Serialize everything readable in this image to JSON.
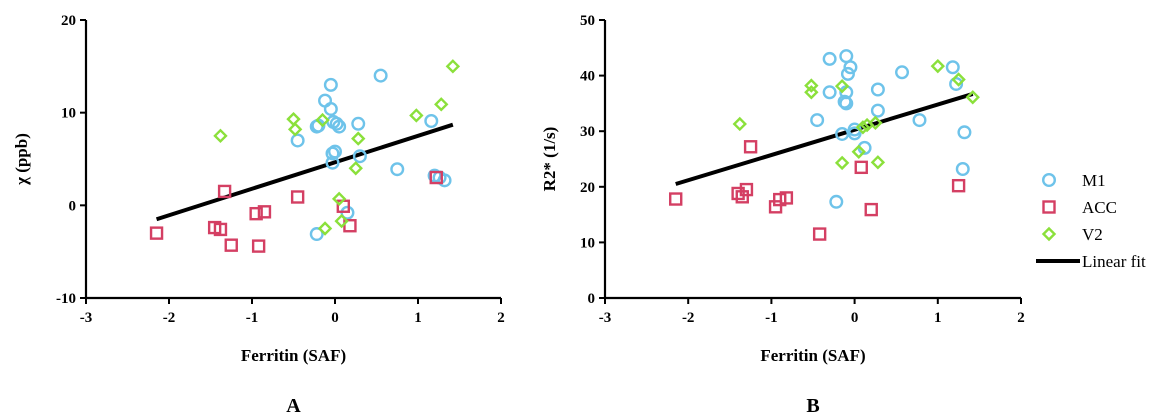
{
  "chart_data": [
    {
      "type": "scatter",
      "panel_label": "A",
      "xlabel": "Ferritin (SAF)",
      "ylabel": "χ (ppb)",
      "xlim": [
        -3,
        2
      ],
      "ylim": [
        -10,
        20
      ],
      "xticks": [
        -3,
        -2,
        -1,
        0,
        1,
        2
      ],
      "yticks": [
        -10,
        0,
        10,
        20
      ],
      "grid": false,
      "series": [
        {
          "name": "M1",
          "marker": "circle",
          "color": "#6ec3ea",
          "points": [
            [
              -0.45,
              7.0
            ],
            [
              -0.22,
              8.5
            ],
            [
              -0.2,
              8.6
            ],
            [
              -0.12,
              11.3
            ],
            [
              -0.05,
              13.0
            ],
            [
              -0.05,
              10.4
            ],
            [
              -0.02,
              9.0
            ],
            [
              0.02,
              8.8
            ],
            [
              0.05,
              8.5
            ],
            [
              -0.03,
              5.6
            ],
            [
              0.0,
              5.8
            ],
            [
              -0.03,
              4.6
            ],
            [
              0.28,
              8.8
            ],
            [
              0.3,
              5.3
            ],
            [
              0.55,
              14.0
            ],
            [
              0.75,
              3.9
            ],
            [
              1.16,
              9.1
            ],
            [
              1.2,
              3.2
            ],
            [
              1.26,
              3.0
            ],
            [
              1.32,
              2.7
            ],
            [
              0.15,
              -0.8
            ],
            [
              -0.22,
              -3.1
            ]
          ]
        },
        {
          "name": "ACC",
          "marker": "square",
          "color": "#d43f63",
          "points": [
            [
              -2.15,
              -3.0
            ],
            [
              -1.45,
              -2.4
            ],
            [
              -1.38,
              -2.6
            ],
            [
              -1.33,
              1.5
            ],
            [
              -1.25,
              -4.3
            ],
            [
              -0.95,
              -0.9
            ],
            [
              -0.92,
              -4.4
            ],
            [
              -0.85,
              -0.7
            ],
            [
              -0.45,
              0.9
            ],
            [
              0.1,
              -0.1
            ],
            [
              0.18,
              -2.2
            ],
            [
              1.22,
              3.0
            ]
          ]
        },
        {
          "name": "V2",
          "marker": "diamond",
          "color": "#8be03b",
          "points": [
            [
              -1.38,
              7.5
            ],
            [
              -0.5,
              9.3
            ],
            [
              -0.48,
              8.2
            ],
            [
              -0.15,
              9.2
            ],
            [
              0.28,
              7.2
            ],
            [
              0.25,
              4.0
            ],
            [
              0.05,
              0.7
            ],
            [
              0.08,
              -1.7
            ],
            [
              -0.12,
              -2.5
            ],
            [
              0.98,
              9.7
            ],
            [
              1.28,
              10.9
            ],
            [
              1.42,
              15.0
            ]
          ]
        }
      ],
      "fit": {
        "name": "Linear fit",
        "x": [
          -2.15,
          1.42
        ],
        "y": [
          -1.5,
          8.7
        ],
        "color": "#000000"
      }
    },
    {
      "type": "scatter",
      "panel_label": "B",
      "xlabel": "Ferritin (SAF)",
      "ylabel": "R2* (1/s)",
      "xlim": [
        -3,
        2
      ],
      "ylim": [
        0,
        50
      ],
      "xticks": [
        -3,
        -2,
        -1,
        0,
        1,
        2
      ],
      "yticks": [
        0,
        10,
        20,
        30,
        40,
        50
      ],
      "grid": false,
      "series": [
        {
          "name": "M1",
          "marker": "circle",
          "color": "#6ec3ea",
          "points": [
            [
              -0.3,
              43.0
            ],
            [
              -0.1,
              43.5
            ],
            [
              -0.05,
              41.5
            ],
            [
              -0.08,
              40.3
            ],
            [
              -0.3,
              37.0
            ],
            [
              -0.1,
              37.0
            ],
            [
              -0.12,
              35.3
            ],
            [
              -0.1,
              35.0
            ],
            [
              -0.45,
              32.0
            ],
            [
              0.0,
              30.3
            ],
            [
              -0.15,
              29.5
            ],
            [
              0.0,
              29.6
            ],
            [
              0.12,
              27.0
            ],
            [
              -0.22,
              17.3
            ],
            [
              0.28,
              37.5
            ],
            [
              0.28,
              33.7
            ],
            [
              0.57,
              40.6
            ],
            [
              0.78,
              32.0
            ],
            [
              1.18,
              41.5
            ],
            [
              1.22,
              38.5
            ],
            [
              1.32,
              29.8
            ],
            [
              1.3,
              23.2
            ]
          ]
        },
        {
          "name": "ACC",
          "marker": "square",
          "color": "#d43f63",
          "points": [
            [
              -2.15,
              17.8
            ],
            [
              -1.4,
              18.8
            ],
            [
              -1.35,
              18.2
            ],
            [
              -1.3,
              19.5
            ],
            [
              -1.25,
              27.2
            ],
            [
              -0.95,
              16.4
            ],
            [
              -0.9,
              17.7
            ],
            [
              -0.82,
              18.0
            ],
            [
              -0.42,
              11.5
            ],
            [
              0.08,
              23.5
            ],
            [
              0.2,
              15.9
            ],
            [
              1.25,
              20.2
            ]
          ]
        },
        {
          "name": "V2",
          "marker": "diamond",
          "color": "#8be03b",
          "points": [
            [
              -1.38,
              31.3
            ],
            [
              -0.52,
              38.2
            ],
            [
              -0.52,
              37.0
            ],
            [
              -0.15,
              38.1
            ],
            [
              -0.15,
              24.3
            ],
            [
              0.05,
              26.3
            ],
            [
              0.1,
              30.7
            ],
            [
              0.15,
              31.1
            ],
            [
              0.25,
              31.5
            ],
            [
              0.28,
              24.4
            ],
            [
              1.0,
              41.7
            ],
            [
              1.25,
              39.3
            ],
            [
              1.42,
              36.1
            ]
          ]
        }
      ],
      "fit": {
        "name": "Linear fit",
        "x": [
          -2.15,
          1.42
        ],
        "y": [
          20.5,
          36.7
        ],
        "color": "#000000"
      }
    }
  ],
  "legend": {
    "placement": "right",
    "items": [
      {
        "label": "M1",
        "marker": "circle",
        "color": "#6ec3ea"
      },
      {
        "label": "ACC",
        "marker": "square",
        "color": "#d43f63"
      },
      {
        "label": "V2",
        "marker": "diamond",
        "color": "#8be03b"
      },
      {
        "label": "Linear fit",
        "marker": "line",
        "color": "#000000"
      }
    ]
  }
}
